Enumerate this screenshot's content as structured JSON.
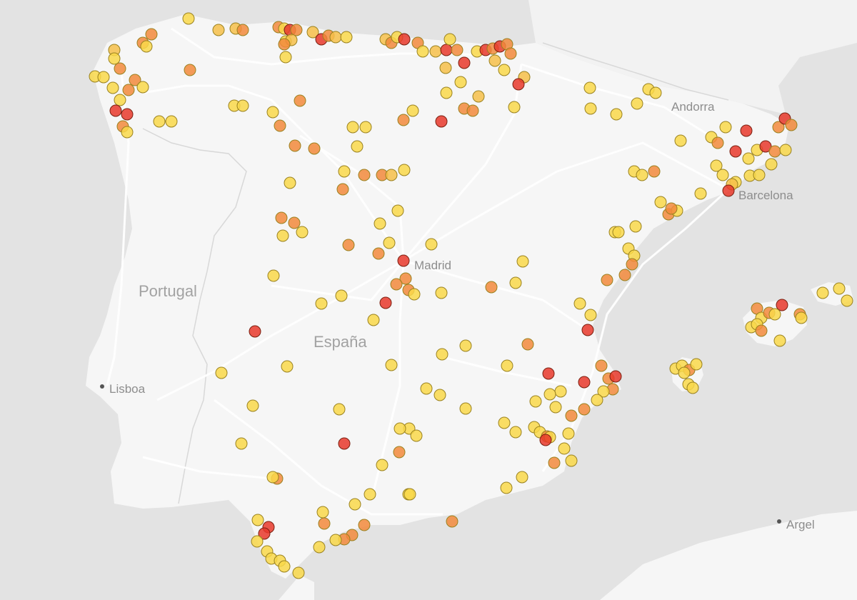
{
  "map": {
    "labels": {
      "portugal": "Portugal",
      "espana": "España",
      "madrid": "Madrid",
      "barcelona": "Barcelona",
      "lisboa": "Lisboa",
      "andorra": "Andorra",
      "argel": "Argel"
    },
    "colors": {
      "sea": "#e3e3e3",
      "land": "#f6f6f6",
      "roads": "#ffffff",
      "borders": "#d6d6d6",
      "marker_yellow": "#f9d84a",
      "marker_light_orange": "#f6c04a",
      "marker_orange": "#f28a3c",
      "marker_red": "#e8382b"
    },
    "marker_levels": [
      "low",
      "medium",
      "high",
      "very-high"
    ],
    "marker_count_approx": 330
  }
}
